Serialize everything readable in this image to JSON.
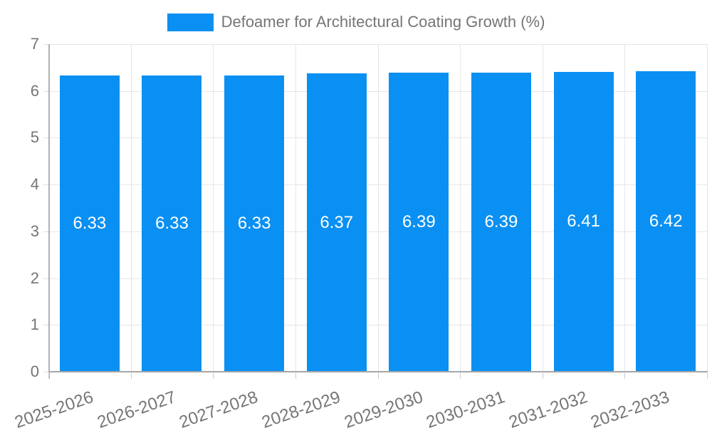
{
  "chart_data": {
    "type": "bar",
    "title": "Defoamer for Architectural Coating Growth (%)",
    "categories": [
      "2025-2026",
      "2026-2027",
      "2027-2028",
      "2028-2029",
      "2029-2030",
      "2030-2031",
      "2031-2032",
      "2032-2033"
    ],
    "values": [
      6.33,
      6.33,
      6.33,
      6.37,
      6.39,
      6.39,
      6.41,
      6.42
    ],
    "value_labels": [
      "6.33",
      "6.33",
      "6.33",
      "6.37",
      "6.39",
      "6.39",
      "6.41",
      "6.42"
    ],
    "xlabel": "",
    "ylabel": "",
    "ylim": [
      0,
      7
    ],
    "yticks": [
      0,
      1,
      2,
      3,
      4,
      5,
      6,
      7
    ],
    "grid": true,
    "legend": {
      "position": "top",
      "entries": [
        {
          "label": "Defoamer for Architectural Coating Growth (%)",
          "color": "#0a90f2"
        }
      ]
    },
    "colors": {
      "bar": "#0a90f2",
      "axis_text": "#757575",
      "value_label": "#ffffff",
      "gridline": "#e6e6e6",
      "axis_line": "#b0b0b0"
    }
  }
}
